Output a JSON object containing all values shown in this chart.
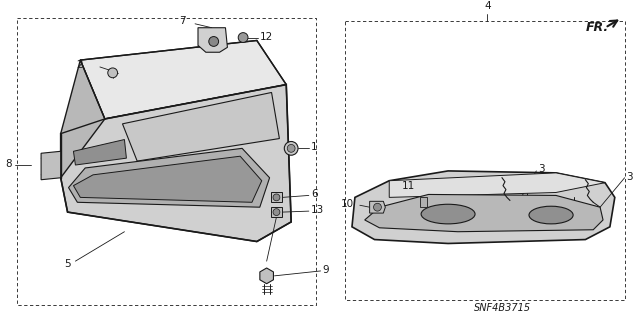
{
  "bg_color": "#ffffff",
  "line_color": "#1a1a1a",
  "fig_width": 6.4,
  "fig_height": 3.19,
  "dpi": 100,
  "diagram_code": "SNF4B3715",
  "gray": "#888888",
  "light_gray": "#cccccc"
}
